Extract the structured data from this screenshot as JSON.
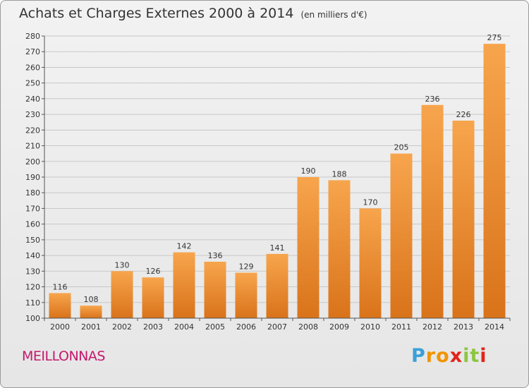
{
  "chart_data": {
    "type": "bar",
    "title": "Achats et Charges Externes 2000 à 2014",
    "unit_note": "(en milliers d'€)",
    "categories": [
      "2000",
      "2001",
      "2002",
      "2003",
      "2004",
      "2005",
      "2006",
      "2007",
      "2008",
      "2009",
      "2010",
      "2011",
      "2012",
      "2013",
      "2014"
    ],
    "values": [
      116,
      108,
      130,
      126,
      142,
      136,
      129,
      141,
      190,
      188,
      170,
      205,
      236,
      226,
      275
    ],
    "ylim": [
      100,
      280
    ],
    "yticks": [
      100,
      110,
      120,
      130,
      140,
      150,
      160,
      170,
      180,
      190,
      200,
      210,
      220,
      230,
      240,
      250,
      260,
      270,
      280
    ],
    "grid": true,
    "bar_color_top": "#f7a54d",
    "bar_color_bottom": "#d9731a",
    "xlabel": "",
    "ylabel": ""
  },
  "footer": {
    "commune": "MEILLONNAS",
    "brand_letters": [
      "P",
      "r",
      "o",
      "x",
      "i",
      "t",
      "i"
    ],
    "brand_colors": [
      "#3aa0d8",
      "#f29400",
      "#f29400",
      "#e2231a",
      "#8cc63f",
      "#8cc63f",
      "#e2231a"
    ]
  }
}
